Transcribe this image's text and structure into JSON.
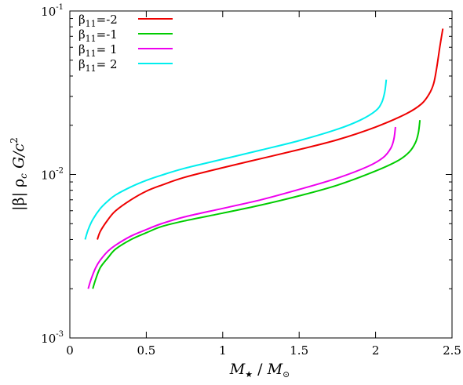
{
  "chart_data": {
    "type": "line",
    "xlabel": "M★ / M⊙",
    "ylabel": "|β| ρc G/c²",
    "xlim": [
      0,
      2.5
    ],
    "ylim": [
      0.001,
      0.1
    ],
    "yscale": "log",
    "grid": false,
    "legend_position": "top-left",
    "x_ticks": [
      {
        "value": 0,
        "label": "0"
      },
      {
        "value": 0.5,
        "label": "0.5"
      },
      {
        "value": 1,
        "label": "1"
      },
      {
        "value": 1.5,
        "label": "1.5"
      },
      {
        "value": 2,
        "label": "2"
      },
      {
        "value": 2.5,
        "label": "2.5"
      }
    ],
    "y_ticks": [
      {
        "value": 0.001,
        "base": "10",
        "exp": "-3"
      },
      {
        "value": 0.01,
        "base": "10",
        "exp": "-2"
      },
      {
        "value": 0.1,
        "base": "10",
        "exp": "-1"
      }
    ],
    "series": [
      {
        "name": "β11=-2",
        "label_base": "β",
        "label_sub": "11",
        "label_rest": "=-2",
        "color": "#ee0000",
        "x": [
          0.18,
          0.2,
          0.25,
          0.3,
          0.4,
          0.5,
          0.6,
          0.75,
          1.0,
          1.25,
          1.5,
          1.75,
          2.0,
          2.2,
          2.3,
          2.35,
          2.38,
          2.4,
          2.42,
          2.44
        ],
        "y": [
          0.004,
          0.0045,
          0.0053,
          0.006,
          0.007,
          0.0079,
          0.0086,
          0.0096,
          0.011,
          0.0125,
          0.0142,
          0.0163,
          0.0195,
          0.0235,
          0.027,
          0.031,
          0.036,
          0.045,
          0.06,
          0.078
        ]
      },
      {
        "name": "β11=-1",
        "label_base": "β",
        "label_sub": "11",
        "label_rest": "=-1",
        "color": "#00cc00",
        "x": [
          0.15,
          0.17,
          0.2,
          0.25,
          0.3,
          0.4,
          0.5,
          0.6,
          0.75,
          1.0,
          1.25,
          1.5,
          1.75,
          2.0,
          2.15,
          2.22,
          2.26,
          2.28,
          2.29
        ],
        "y": [
          0.002,
          0.0023,
          0.0027,
          0.0031,
          0.0035,
          0.004,
          0.0044,
          0.0048,
          0.0052,
          0.0058,
          0.0065,
          0.0074,
          0.0086,
          0.0105,
          0.0122,
          0.0137,
          0.0156,
          0.018,
          0.0215
        ]
      },
      {
        "name": "β11= 1",
        "label_base": "β",
        "label_sub": "11",
        "label_rest": "= 1",
        "color": "#ee00ee",
        "x": [
          0.12,
          0.14,
          0.17,
          0.2,
          0.25,
          0.3,
          0.4,
          0.5,
          0.6,
          0.75,
          1.0,
          1.25,
          1.5,
          1.75,
          1.95,
          2.05,
          2.1,
          2.12,
          2.13
        ],
        "y": [
          0.002,
          0.0023,
          0.0027,
          0.003,
          0.0034,
          0.0037,
          0.0042,
          0.0046,
          0.005,
          0.0055,
          0.0062,
          0.007,
          0.0081,
          0.0095,
          0.0112,
          0.0127,
          0.0145,
          0.0165,
          0.0195
        ]
      },
      {
        "name": "β11= 2",
        "label_base": "β",
        "label_sub": "11",
        "label_rest": "= 2",
        "color": "#00eeee",
        "x": [
          0.1,
          0.12,
          0.15,
          0.2,
          0.25,
          0.3,
          0.4,
          0.5,
          0.6,
          0.75,
          1.0,
          1.25,
          1.5,
          1.75,
          1.9,
          2.0,
          2.04,
          2.06,
          2.07
        ],
        "y": [
          0.004,
          0.0046,
          0.0053,
          0.0062,
          0.0069,
          0.0075,
          0.0084,
          0.0092,
          0.0099,
          0.0109,
          0.0124,
          0.0141,
          0.0161,
          0.0189,
          0.0215,
          0.0245,
          0.0275,
          0.032,
          0.038
        ]
      }
    ]
  }
}
